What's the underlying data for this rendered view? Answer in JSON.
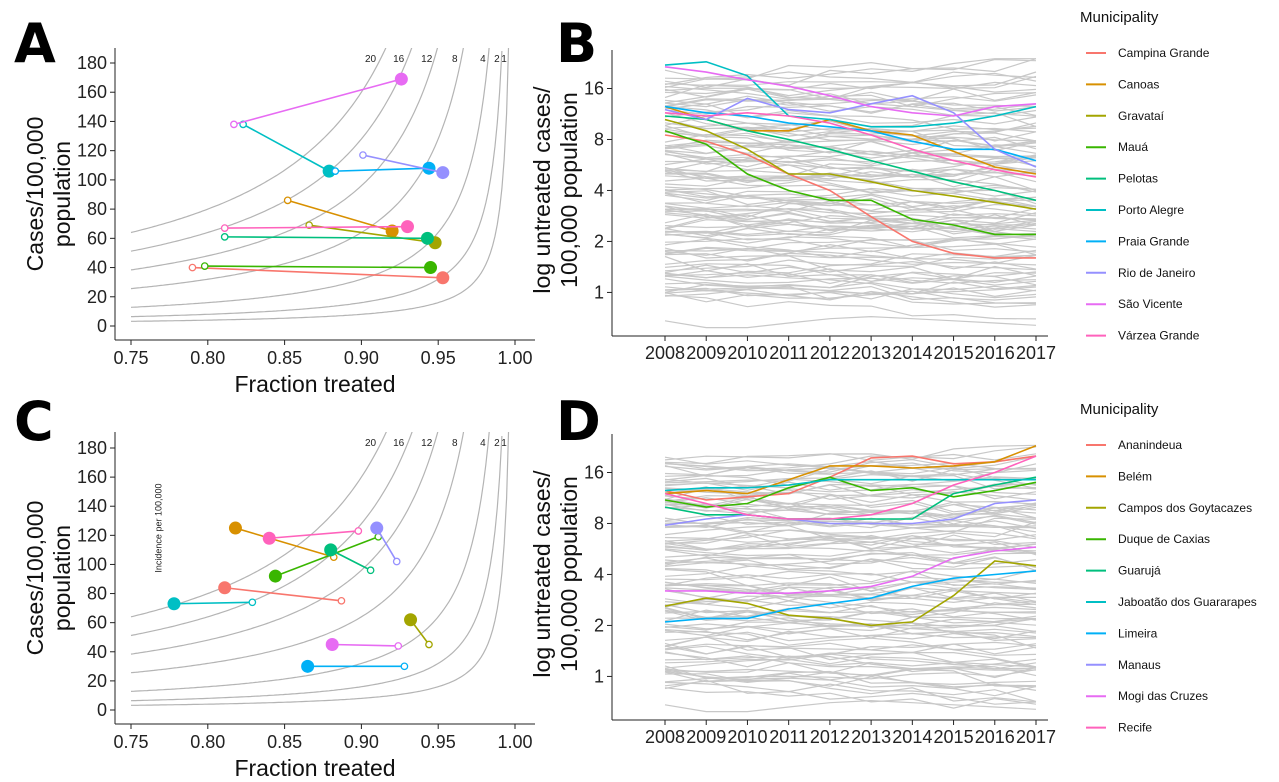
{
  "colors": {
    "gray_line": "#c8c8c8",
    "iso_line": "#b4b4b4",
    "palette": [
      "#F8766D",
      "#D89000",
      "#A3A500",
      "#39B600",
      "#00BF7D",
      "#00BFC4",
      "#00B0F6",
      "#9590FF",
      "#E76BF3",
      "#FF62BC"
    ]
  },
  "chart_data": [
    {
      "panel": "A",
      "type": "scatter",
      "xlabel": "Fraction treated",
      "ylabel": [
        "Cases/100,000",
        "population"
      ],
      "xlim": [
        0.75,
        1.0
      ],
      "ylim": [
        0,
        180
      ],
      "x_ticks": [
        "0.75",
        "0.80",
        "0.85",
        "0.90",
        "0.95",
        "1.00"
      ],
      "y_ticks": [
        "0",
        "20",
        "40",
        "60",
        "80",
        "100",
        "120",
        "140",
        "160",
        "180"
      ],
      "isolines": [
        20,
        16,
        12,
        8,
        4,
        2,
        1
      ],
      "isoline_labels": [
        "20",
        "16",
        "12",
        "8",
        "4",
        "2",
        "1"
      ],
      "note": "",
      "grid": false,
      "series": [
        {
          "x0": 0.79,
          "y0": 40,
          "x1": 0.953,
          "y1": 33
        },
        {
          "x0": 0.852,
          "y0": 86,
          "x1": 0.92,
          "y1": 65
        },
        {
          "x0": 0.866,
          "y0": 69,
          "x1": 0.948,
          "y1": 57
        },
        {
          "x0": 0.798,
          "y0": 41,
          "x1": 0.945,
          "y1": 40
        },
        {
          "x0": 0.811,
          "y0": 61,
          "x1": 0.943,
          "y1": 60
        },
        {
          "x0": 0.823,
          "y0": 138,
          "x1": 0.879,
          "y1": 106
        },
        {
          "x0": 0.883,
          "y0": 106,
          "x1": 0.944,
          "y1": 108
        },
        {
          "x0": 0.901,
          "y0": 117,
          "x1": 0.953,
          "y1": 105
        },
        {
          "x0": 0.817,
          "y0": 138,
          "x1": 0.926,
          "y1": 169
        },
        {
          "x0": 0.811,
          "y0": 67,
          "x1": 0.93,
          "y1": 68
        }
      ]
    },
    {
      "panel": "B",
      "type": "line",
      "ylabel": [
        "log untreated cases/",
        "100,000 population"
      ],
      "x": [
        2008,
        2009,
        2010,
        2011,
        2012,
        2013,
        2014,
        2015,
        2016,
        2017
      ],
      "y_ticks": [
        1,
        2,
        4,
        8,
        16
      ],
      "ylim": [
        0.6,
        27
      ],
      "log_y": true,
      "legend_title": "Municipality",
      "legend_position": "right",
      "series": [
        {
          "name": "Campina Grande",
          "values": [
            8.5,
            7.8,
            6.5,
            5.0,
            4.0,
            2.8,
            2.0,
            1.7,
            1.6,
            1.6
          ]
        },
        {
          "name": "Canoas",
          "values": [
            12.5,
            10.5,
            9.0,
            9.0,
            10.5,
            9.0,
            8.5,
            6.8,
            5.5,
            5.0
          ]
        },
        {
          "name": "Gravataí",
          "values": [
            10.5,
            9.0,
            7.0,
            5.0,
            5.0,
            4.5,
            4.0,
            3.7,
            3.4,
            3.1
          ]
        },
        {
          "name": "Mauá",
          "values": [
            9.0,
            7.5,
            5.0,
            4.0,
            3.5,
            3.5,
            2.7,
            2.5,
            2.2,
            2.2
          ]
        },
        {
          "name": "Pelotas",
          "values": [
            11.0,
            10.5,
            9.0,
            8.0,
            7.0,
            6.0,
            5.2,
            4.5,
            4.0,
            3.5
          ]
        },
        {
          "name": "Porto Alegre",
          "values": [
            22.0,
            23.0,
            19.0,
            11.0,
            10.5,
            9.5,
            9.5,
            10.0,
            11.0,
            12.5
          ]
        },
        {
          "name": "Praia Grande",
          "values": [
            12.5,
            11.5,
            11.0,
            10.0,
            9.5,
            9.0,
            7.8,
            7.0,
            7.0,
            6.0
          ]
        },
        {
          "name": "Rio de Janeiro",
          "values": [
            12.0,
            10.5,
            14.0,
            12.0,
            11.5,
            13.0,
            14.5,
            11.5,
            7.0,
            5.5
          ]
        },
        {
          "name": "São Vicente",
          "values": [
            21.5,
            20.0,
            18.0,
            16.5,
            14.5,
            12.5,
            11.5,
            11.0,
            12.5,
            13.0
          ]
        },
        {
          "name": "Várzea Grande",
          "values": [
            11.5,
            11.0,
            11.5,
            11.0,
            10.0,
            8.5,
            7.0,
            6.0,
            5.3,
            4.8
          ]
        }
      ]
    },
    {
      "panel": "C",
      "type": "scatter",
      "xlabel": "Fraction treated",
      "ylabel": [
        "Cases/100,000",
        "population"
      ],
      "xlim": [
        0.75,
        1.0
      ],
      "ylim": [
        0,
        180
      ],
      "x_ticks": [
        "0.75",
        "0.80",
        "0.85",
        "0.90",
        "0.95",
        "1.00"
      ],
      "y_ticks": [
        "0",
        "20",
        "40",
        "60",
        "80",
        "100",
        "120",
        "140",
        "160",
        "180"
      ],
      "isolines": [
        20,
        16,
        12,
        8,
        4,
        2,
        1
      ],
      "isoline_labels": [
        "20",
        "16",
        "12",
        "8",
        "4",
        "2",
        "1"
      ],
      "note": "Incidence per 100,000",
      "grid": false,
      "series": [
        {
          "x0": 0.887,
          "y0": 75,
          "x1": 0.811,
          "y1": 84
        },
        {
          "x0": 0.882,
          "y0": 105,
          "x1": 0.818,
          "y1": 125
        },
        {
          "x0": 0.944,
          "y0": 45,
          "x1": 0.932,
          "y1": 62
        },
        {
          "x0": 0.911,
          "y0": 119,
          "x1": 0.844,
          "y1": 92
        },
        {
          "x0": 0.906,
          "y0": 96,
          "x1": 0.88,
          "y1": 110
        },
        {
          "x0": 0.829,
          "y0": 74,
          "x1": 0.778,
          "y1": 73
        },
        {
          "x0": 0.928,
          "y0": 30,
          "x1": 0.865,
          "y1": 30
        },
        {
          "x0": 0.923,
          "y0": 102,
          "x1": 0.91,
          "y1": 125
        },
        {
          "x0": 0.924,
          "y0": 44,
          "x1": 0.881,
          "y1": 45
        },
        {
          "x0": 0.898,
          "y0": 123,
          "x1": 0.84,
          "y1": 118
        }
      ]
    },
    {
      "panel": "D",
      "type": "line",
      "ylabel": [
        "log untreated cases/",
        "100,000 population"
      ],
      "x": [
        2008,
        2009,
        2010,
        2011,
        2012,
        2013,
        2014,
        2015,
        2016,
        2017
      ],
      "y_ticks": [
        1,
        2,
        4,
        8,
        16
      ],
      "ylim": [
        0.6,
        27
      ],
      "log_y": true,
      "legend_title": "Municipality",
      "legend_position": "right",
      "series": [
        {
          "name": "Ananindeua",
          "values": [
            12.5,
            11.0,
            11.5,
            12.0,
            15.0,
            19.5,
            20.0,
            18.0,
            18.5,
            20.0
          ]
        },
        {
          "name": "Belém",
          "values": [
            12.0,
            12.5,
            12.0,
            14.5,
            17.5,
            17.5,
            17.0,
            17.5,
            18.5,
            23.0
          ]
        },
        {
          "name": "Campos dos Goytacazes",
          "values": [
            2.6,
            2.9,
            2.7,
            2.3,
            2.2,
            2.0,
            2.1,
            3.0,
            4.8,
            4.5
          ]
        },
        {
          "name": "Duque de Caxias",
          "values": [
            11.0,
            10.0,
            10.5,
            13.0,
            15.0,
            12.5,
            13.0,
            11.5,
            12.5,
            14.0
          ]
        },
        {
          "name": "Guarujá",
          "values": [
            10.0,
            9.0,
            9.0,
            8.5,
            8.5,
            8.5,
            8.5,
            12.0,
            13.5,
            15.0
          ]
        },
        {
          "name": "Jaboatão dos Guararapes",
          "values": [
            12.5,
            13.0,
            13.0,
            13.5,
            14.5,
            14.5,
            14.5,
            14.5,
            14.5,
            14.5
          ]
        },
        {
          "name": "Limeira",
          "values": [
            2.1,
            2.2,
            2.2,
            2.5,
            2.7,
            2.9,
            3.4,
            3.8,
            4.0,
            4.2
          ]
        },
        {
          "name": "Manaus",
          "values": [
            7.8,
            8.5,
            9.0,
            8.5,
            8.0,
            8.0,
            8.0,
            8.5,
            10.5,
            11.0
          ]
        },
        {
          "name": "Mogi das Cruzes",
          "values": [
            3.2,
            3.2,
            3.1,
            3.1,
            3.2,
            3.4,
            3.9,
            5.0,
            5.5,
            5.8
          ]
        },
        {
          "name": "Recife",
          "values": [
            12.0,
            10.5,
            9.0,
            8.5,
            8.5,
            9.0,
            10.5,
            13.5,
            16.0,
            20.0
          ]
        }
      ]
    }
  ]
}
